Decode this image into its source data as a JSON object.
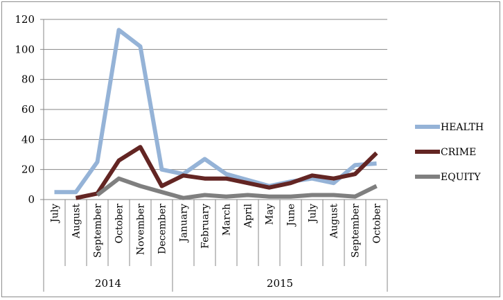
{
  "chart_data": {
    "type": "line",
    "categories": [
      "July",
      "August",
      "September",
      "October",
      "November",
      "December",
      "January",
      "February",
      "March",
      "April",
      "May",
      "June",
      "July",
      "August",
      "September",
      "October"
    ],
    "groups": [
      {
        "label": "2014",
        "span": 6
      },
      {
        "label": "2015",
        "span": 10
      }
    ],
    "series": [
      {
        "name": "HEALTH",
        "color": "#95b3d7",
        "values": [
          5,
          5,
          25,
          113,
          102,
          20,
          17,
          27,
          17,
          13,
          9,
          12,
          14,
          11,
          23,
          24
        ]
      },
      {
        "name": "CRIME",
        "color": "#632523",
        "values": [
          null,
          1,
          4,
          26,
          35,
          9,
          16,
          14,
          14,
          11,
          8,
          11,
          16,
          14,
          17,
          31
        ]
      },
      {
        "name": "EQUITY",
        "color": "#7f7f7f",
        "values": [
          null,
          null,
          3,
          14,
          9,
          5,
          1,
          3,
          2,
          3,
          2,
          2,
          3,
          3,
          2,
          9
        ]
      }
    ],
    "yticks": [
      0,
      20,
      40,
      60,
      80,
      100,
      120
    ],
    "ylim": [
      0,
      120
    ],
    "grid": true,
    "legend": "right",
    "title": "",
    "xlabel": "",
    "ylabel": ""
  }
}
